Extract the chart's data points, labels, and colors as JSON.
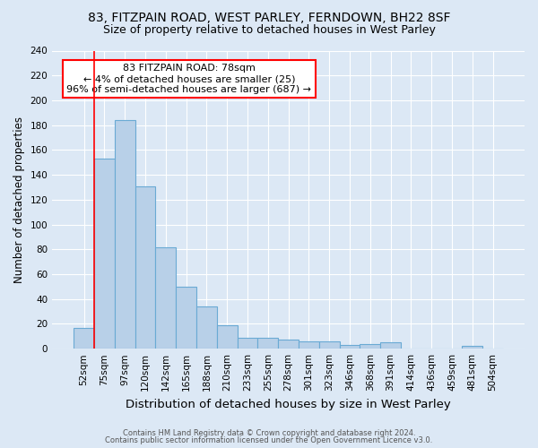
{
  "title1": "83, FITZPAIN ROAD, WEST PARLEY, FERNDOWN, BH22 8SF",
  "title2": "Size of property relative to detached houses in West Parley",
  "xlabel": "Distribution of detached houses by size in West Parley",
  "ylabel": "Number of detached properties",
  "footer1": "Contains HM Land Registry data © Crown copyright and database right 2024.",
  "footer2": "Contains public sector information licensed under the Open Government Licence v3.0.",
  "bin_labels": [
    "52sqm",
    "75sqm",
    "97sqm",
    "120sqm",
    "142sqm",
    "165sqm",
    "188sqm",
    "210sqm",
    "233sqm",
    "255sqm",
    "278sqm",
    "301sqm",
    "323sqm",
    "346sqm",
    "368sqm",
    "391sqm",
    "414sqm",
    "436sqm",
    "459sqm",
    "481sqm",
    "504sqm"
  ],
  "bar_values": [
    17,
    153,
    184,
    131,
    82,
    50,
    34,
    19,
    9,
    9,
    7,
    6,
    6,
    3,
    4,
    5,
    0,
    0,
    0,
    2,
    0
  ],
  "bar_color": "#b8d0e8",
  "bar_edge_color": "#6aaad4",
  "annotation_text": "83 FITZPAIN ROAD: 78sqm\n← 4% of detached houses are smaller (25)\n96% of semi-detached houses are larger (687) →",
  "annotation_box_color": "white",
  "annotation_box_edge_color": "red",
  "vline_color": "red",
  "ylim": [
    0,
    240
  ],
  "yticks": [
    0,
    20,
    40,
    60,
    80,
    100,
    120,
    140,
    160,
    180,
    200,
    220,
    240
  ],
  "background_color": "#dce8f5",
  "plot_bg_color": "#dce8f5",
  "grid_color": "white",
  "title1_fontsize": 10,
  "title2_fontsize": 9,
  "xlabel_fontsize": 9.5,
  "ylabel_fontsize": 8.5,
  "annotation_fontsize": 8,
  "tick_fontsize": 7.5,
  "footer_fontsize": 6
}
